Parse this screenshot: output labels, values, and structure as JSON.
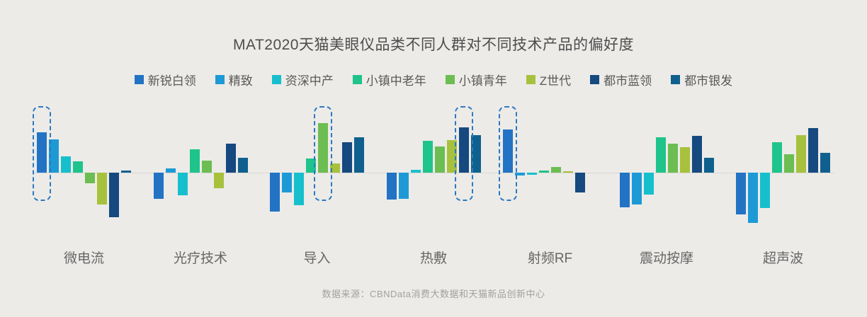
{
  "title": "MAT2020天猫美眼仪品类不同人群对不同技术产品的偏好度",
  "source": "数据来源：CBNData消费大数据和天猫新品创新中心",
  "colors": {
    "background": "#ecebe8",
    "baseline": "#d9d7d2",
    "highlight_dash": "#2d79c0",
    "title_text": "#4d4d4d",
    "axis_label_text": "#666666",
    "source_text": "#a3a19c"
  },
  "chart_data": {
    "type": "bar",
    "title": "MAT2020天猫美眼仪品类不同人群对不同技术产品的偏好度",
    "categories": [
      "微电流",
      "光疗技术",
      "导入",
      "热敷",
      "射频RF",
      "震动按摩",
      "超声波"
    ],
    "series": [
      {
        "name": "新锐白领",
        "color": "#2273c4",
        "values": [
          57,
          -37,
          -55,
          -38,
          61,
          -49,
          -59
        ]
      },
      {
        "name": "精致",
        "color": "#1d9ad6",
        "values": [
          47,
          6,
          -28,
          -37,
          -4,
          -45,
          -71
        ]
      },
      {
        "name": "资深中产",
        "color": "#17bfcd",
        "values": [
          23,
          -32,
          -46,
          4,
          -3,
          -31,
          -50
        ]
      },
      {
        "name": "小镇中老年",
        "color": "#1fc38c",
        "values": [
          16,
          33,
          20,
          45,
          3,
          50,
          43
        ]
      },
      {
        "name": "小镇青年",
        "color": "#6cbd52",
        "values": [
          -15,
          17,
          70,
          37,
          8,
          41,
          26
        ]
      },
      {
        "name": "Z世代",
        "color": "#a7c13d",
        "values": [
          -45,
          -22,
          13,
          46,
          2,
          36,
          53
        ]
      },
      {
        "name": "都市蓝领",
        "color": "#15497f",
        "values": [
          -63,
          41,
          43,
          64,
          -28,
          52,
          63
        ]
      },
      {
        "name": "都市银发",
        "color": "#0f608e",
        "values": [
          3,
          21,
          50,
          53,
          0,
          21,
          28
        ]
      }
    ],
    "highlights": [
      {
        "category": "微电流",
        "category_index": 0,
        "series": "新锐白领",
        "series_index": 0
      },
      {
        "category": "导入",
        "category_index": 2,
        "series": "小镇青年",
        "series_index": 4
      },
      {
        "category": "热敷",
        "category_index": 3,
        "series": "都市蓝领",
        "series_index": 6
      },
      {
        "category": "射频RF",
        "category_index": 4,
        "series": "新锐白领",
        "series_index": 0
      }
    ],
    "ylim": [
      -80,
      94
    ],
    "grid": false,
    "legend_position": "top",
    "xlabel": "",
    "ylabel": ""
  }
}
